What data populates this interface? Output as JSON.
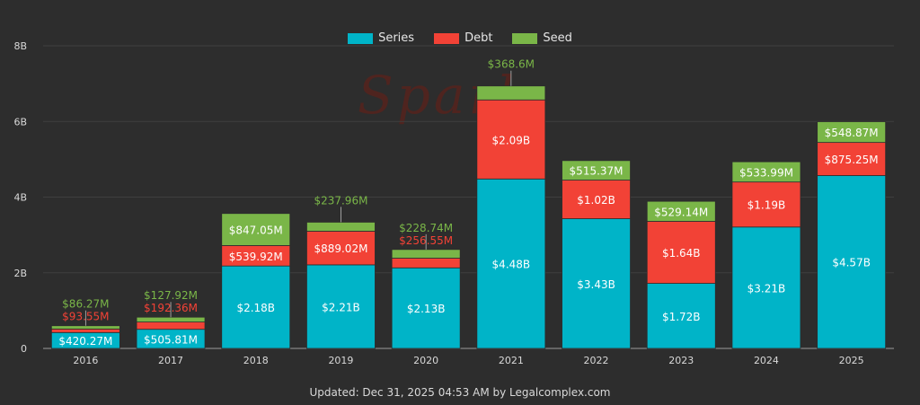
{
  "watermark": "Spark",
  "footer": "Updated: Dec 31, 2025 04:53 AM by Legalcomplex.com",
  "colors": {
    "Series": "#00b4c8",
    "Debt": "#f24236",
    "Seed": "#7ab648",
    "bg": "#2d2d2d",
    "text": "#e6e6e6"
  },
  "chart_data": {
    "type": "bar",
    "stacked": true,
    "title": "",
    "xlabel": "",
    "ylabel": "",
    "ylim": [
      0,
      8000000000
    ],
    "yticks": [
      0,
      2000000000,
      4000000000,
      6000000000,
      8000000000
    ],
    "ytick_labels": [
      "0",
      "2B",
      "4B",
      "6B",
      "8B"
    ],
    "categories": [
      "2016",
      "2017",
      "2018",
      "2019",
      "2020",
      "2021",
      "2022",
      "2023",
      "2024",
      "2025"
    ],
    "legend_position": "top-center",
    "series": [
      {
        "name": "Series",
        "values": [
          420270000,
          505810000,
          2180000000,
          2210000000,
          2130000000,
          4480000000,
          3430000000,
          1720000000,
          3210000000,
          4570000000
        ],
        "labels": [
          "$420.27M",
          "$505.81M",
          "$2.18B",
          "$2.21B",
          "$2.13B",
          "$4.48B",
          "$3.43B",
          "$1.72B",
          "$3.21B",
          "$4.57B"
        ]
      },
      {
        "name": "Debt",
        "values": [
          93550000,
          192360000,
          539920000,
          889020000,
          256550000,
          2090000000,
          1020000000,
          1640000000,
          1190000000,
          875250000
        ],
        "labels": [
          "$93.55M",
          "$192.36M",
          "$539.92M",
          "$889.02M",
          "$256.55M",
          "$2.09B",
          "$1.02B",
          "$1.64B",
          "$1.19B",
          "$875.25M"
        ]
      },
      {
        "name": "Seed",
        "values": [
          86270000,
          127920000,
          847050000,
          237960000,
          228740000,
          368600000,
          515370000,
          529140000,
          533990000,
          548870000
        ],
        "labels": [
          "$86.27M",
          "$127.92M",
          "$847.05M",
          "$237.96M",
          "$228.74M",
          "$368.6M",
          "$515.37M",
          "$529.14M",
          "$533.99M",
          "$548.87M"
        ]
      }
    ]
  }
}
